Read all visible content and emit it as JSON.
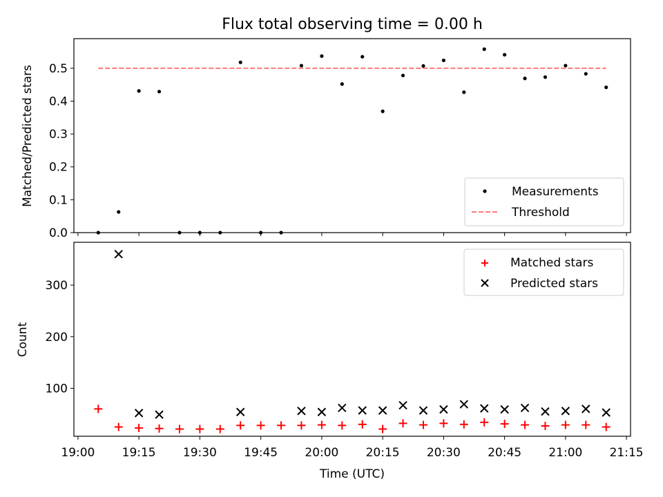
{
  "chart_data": [
    {
      "type": "scatter",
      "title": "Flux total observing time = 0.00 h",
      "xlabel": "",
      "ylabel": "Matched/Predicted stars",
      "xlim": [
        "18:59",
        "21:16"
      ],
      "ylim": [
        0,
        0.59
      ],
      "yticks": [
        0.0,
        0.1,
        0.2,
        0.3,
        0.4,
        0.5
      ],
      "ytick_labels": [
        "0.0",
        "0.1",
        "0.2",
        "0.3",
        "0.4",
        "0.5"
      ],
      "grid": false,
      "legend_position": "lower right",
      "series": [
        {
          "name": "Measurements",
          "marker": "dot",
          "color": "#000000",
          "x": [
            "19:05",
            "19:10",
            "19:15",
            "19:20",
            "19:25",
            "19:30",
            "19:35",
            "19:40",
            "19:45",
            "19:50",
            "19:55",
            "20:00",
            "20:05",
            "20:10",
            "20:15",
            "20:20",
            "20:25",
            "20:30",
            "20:35",
            "20:40",
            "20:45",
            "20:50",
            "20:55",
            "21:00",
            "21:05",
            "21:10"
          ],
          "values": [
            0.0,
            0.063,
            0.431,
            0.429,
            0.0,
            0.0,
            0.0,
            0.518,
            0.0,
            0.0,
            0.508,
            0.537,
            0.452,
            0.535,
            0.369,
            0.478,
            0.507,
            0.524,
            0.427,
            0.558,
            0.541,
            0.469,
            0.473,
            0.508,
            0.483,
            0.442
          ]
        },
        {
          "name": "Threshold",
          "marker": "dashed-line",
          "color": "#ff7777",
          "x": [
            "19:05",
            "21:10"
          ],
          "values": [
            0.5,
            0.5
          ]
        }
      ]
    },
    {
      "type": "scatter",
      "title": "",
      "xlabel": "Time (UTC)",
      "ylabel": "Count",
      "xlim": [
        "18:59",
        "21:16"
      ],
      "ylim": [
        7,
        383
      ],
      "xticks": [
        "19:00",
        "19:15",
        "19:30",
        "19:45",
        "20:00",
        "20:15",
        "20:30",
        "20:45",
        "21:00",
        "21:15"
      ],
      "yticks": [
        100,
        200,
        300
      ],
      "ytick_labels": [
        "100",
        "200",
        "300"
      ],
      "grid": false,
      "legend_position": "upper right",
      "series": [
        {
          "name": "Matched stars",
          "marker": "plus",
          "color": "#ff0000",
          "x": [
            "19:05",
            "19:10",
            "19:15",
            "19:20",
            "19:25",
            "19:30",
            "19:35",
            "19:40",
            "19:45",
            "19:50",
            "19:55",
            "20:00",
            "20:05",
            "20:10",
            "20:15",
            "20:20",
            "20:25",
            "20:30",
            "20:35",
            "20:40",
            "20:45",
            "20:50",
            "20:55",
            "21:00",
            "21:05",
            "21:10"
          ],
          "values": [
            60,
            25,
            23,
            22,
            21,
            21,
            21,
            28,
            28,
            28,
            28,
            29,
            28,
            30,
            21,
            32,
            29,
            32,
            30,
            34,
            31,
            29,
            27,
            29,
            29,
            25
          ]
        },
        {
          "name": "Predicted stars",
          "marker": "x",
          "color": "#000000",
          "x": [
            "19:10",
            "19:15",
            "19:20",
            "19:40",
            "19:55",
            "20:00",
            "20:05",
            "20:10",
            "20:15",
            "20:20",
            "20:25",
            "20:30",
            "20:35",
            "20:40",
            "20:45",
            "20:50",
            "20:55",
            "21:00",
            "21:05",
            "21:10"
          ],
          "values": [
            360,
            52,
            49,
            54,
            56,
            54,
            62,
            57,
            57,
            67,
            57,
            59,
            69,
            61,
            59,
            62,
            55,
            56,
            60,
            53
          ]
        }
      ]
    }
  ]
}
